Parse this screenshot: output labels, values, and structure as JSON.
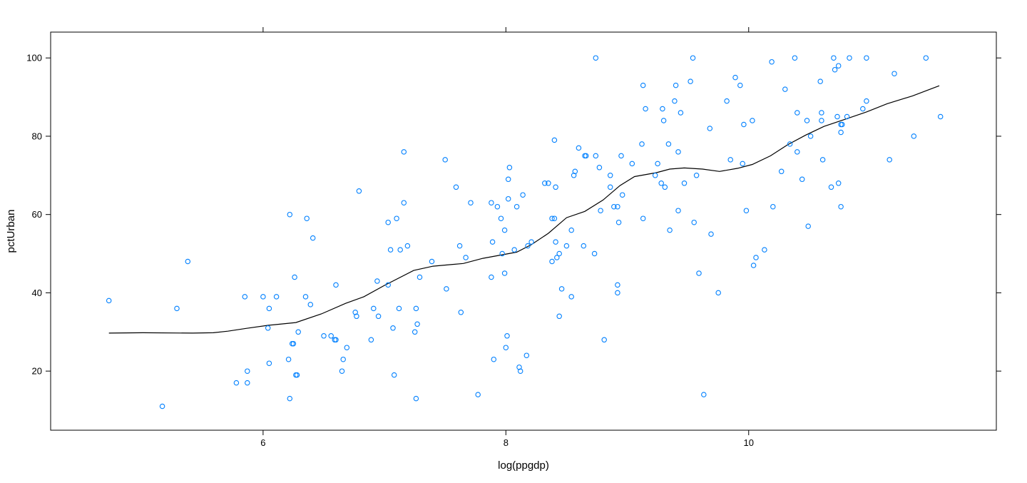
{
  "chart_data": {
    "type": "scatter",
    "xlabel": "log(ppgdp)",
    "ylabel": "pctUrban",
    "xlim": [
      4.25,
      12.04
    ],
    "ylim": [
      4.9,
      106.6
    ],
    "xticks": [
      6,
      8,
      10
    ],
    "yticks": [
      20,
      40,
      60,
      80,
      100
    ],
    "grid": false,
    "colors": {
      "points": "#0080ff",
      "smooth_line": "#000000"
    },
    "points": [
      [
        4.73,
        38
      ],
      [
        5.17,
        11
      ],
      [
        5.29,
        36
      ],
      [
        5.38,
        48
      ],
      [
        5.78,
        17
      ],
      [
        5.85,
        39
      ],
      [
        5.87,
        20
      ],
      [
        5.87,
        17
      ],
      [
        6.0,
        39
      ],
      [
        6.04,
        31
      ],
      [
        6.05,
        36
      ],
      [
        6.05,
        22
      ],
      [
        6.11,
        39
      ],
      [
        6.21,
        23
      ],
      [
        6.22,
        60
      ],
      [
        6.22,
        13
      ],
      [
        6.24,
        27
      ],
      [
        6.25,
        27
      ],
      [
        6.26,
        44
      ],
      [
        6.27,
        19
      ],
      [
        6.28,
        19
      ],
      [
        6.29,
        30
      ],
      [
        6.35,
        39
      ],
      [
        6.36,
        59
      ],
      [
        6.39,
        37
      ],
      [
        6.41,
        54
      ],
      [
        6.5,
        29
      ],
      [
        6.56,
        29
      ],
      [
        6.59,
        28
      ],
      [
        6.6,
        28
      ],
      [
        6.6,
        42
      ],
      [
        6.65,
        20
      ],
      [
        6.66,
        23
      ],
      [
        6.69,
        26
      ],
      [
        6.76,
        35
      ],
      [
        6.77,
        34
      ],
      [
        6.79,
        66
      ],
      [
        6.89,
        28
      ],
      [
        6.91,
        36
      ],
      [
        6.94,
        43
      ],
      [
        6.95,
        34
      ],
      [
        7.03,
        58
      ],
      [
        7.03,
        42
      ],
      [
        7.05,
        51
      ],
      [
        7.07,
        31
      ],
      [
        7.08,
        19
      ],
      [
        7.1,
        59
      ],
      [
        7.12,
        36
      ],
      [
        7.13,
        51
      ],
      [
        7.16,
        76
      ],
      [
        7.16,
        63
      ],
      [
        7.19,
        52
      ],
      [
        7.25,
        30
      ],
      [
        7.26,
        36
      ],
      [
        7.27,
        32
      ],
      [
        7.26,
        13
      ],
      [
        7.29,
        44
      ],
      [
        7.39,
        48
      ],
      [
        7.5,
        74
      ],
      [
        7.51,
        41
      ],
      [
        7.59,
        67
      ],
      [
        7.62,
        52
      ],
      [
        7.63,
        35
      ],
      [
        7.67,
        49
      ],
      [
        7.71,
        63
      ],
      [
        7.77,
        14
      ],
      [
        7.88,
        63
      ],
      [
        7.88,
        44
      ],
      [
        7.89,
        53
      ],
      [
        7.9,
        23
      ],
      [
        7.93,
        62
      ],
      [
        7.96,
        59
      ],
      [
        7.97,
        50
      ],
      [
        7.99,
        56
      ],
      [
        7.99,
        45
      ],
      [
        8.0,
        26
      ],
      [
        8.01,
        29
      ],
      [
        8.02,
        64
      ],
      [
        8.02,
        69
      ],
      [
        8.03,
        72
      ],
      [
        8.07,
        51
      ],
      [
        8.09,
        62
      ],
      [
        8.11,
        21
      ],
      [
        8.12,
        20
      ],
      [
        8.14,
        65
      ],
      [
        8.17,
        24
      ],
      [
        8.18,
        52
      ],
      [
        8.21,
        53
      ],
      [
        8.32,
        68
      ],
      [
        8.35,
        68
      ],
      [
        8.38,
        59
      ],
      [
        8.38,
        48
      ],
      [
        8.4,
        59
      ],
      [
        8.4,
        79
      ],
      [
        8.41,
        67
      ],
      [
        8.41,
        53
      ],
      [
        8.42,
        49
      ],
      [
        8.44,
        50
      ],
      [
        8.44,
        34
      ],
      [
        8.46,
        41
      ],
      [
        8.5,
        52
      ],
      [
        8.54,
        39
      ],
      [
        8.54,
        56
      ],
      [
        8.56,
        70
      ],
      [
        8.57,
        71
      ],
      [
        8.6,
        77
      ],
      [
        8.65,
        75
      ],
      [
        8.66,
        75
      ],
      [
        8.64,
        52
      ],
      [
        8.73,
        50
      ],
      [
        8.74,
        75
      ],
      [
        8.74,
        100
      ],
      [
        8.77,
        72
      ],
      [
        8.78,
        61
      ],
      [
        8.81,
        28
      ],
      [
        8.86,
        70
      ],
      [
        8.86,
        67
      ],
      [
        8.89,
        62
      ],
      [
        8.92,
        62
      ],
      [
        8.92,
        42
      ],
      [
        8.92,
        40
      ],
      [
        8.93,
        58
      ],
      [
        8.95,
        75
      ],
      [
        8.96,
        65
      ],
      [
        9.04,
        73
      ],
      [
        9.12,
        78
      ],
      [
        9.13,
        93
      ],
      [
        9.13,
        59
      ],
      [
        9.15,
        87
      ],
      [
        9.23,
        70
      ],
      [
        9.25,
        73
      ],
      [
        9.28,
        68
      ],
      [
        9.29,
        87
      ],
      [
        9.3,
        84
      ],
      [
        9.31,
        67
      ],
      [
        9.34,
        78
      ],
      [
        9.35,
        56
      ],
      [
        9.39,
        89
      ],
      [
        9.4,
        93
      ],
      [
        9.42,
        76
      ],
      [
        9.42,
        61
      ],
      [
        9.44,
        86
      ],
      [
        9.47,
        68
      ],
      [
        9.52,
        94
      ],
      [
        9.54,
        100
      ],
      [
        9.55,
        58
      ],
      [
        9.57,
        70
      ],
      [
        9.59,
        45
      ],
      [
        9.63,
        14
      ],
      [
        9.68,
        82
      ],
      [
        9.69,
        55
      ],
      [
        9.75,
        40
      ],
      [
        9.82,
        89
      ],
      [
        9.85,
        74
      ],
      [
        9.89,
        95
      ],
      [
        9.93,
        93
      ],
      [
        9.95,
        73
      ],
      [
        9.96,
        83
      ],
      [
        9.98,
        61
      ],
      [
        10.03,
        84
      ],
      [
        10.04,
        47
      ],
      [
        10.06,
        49
      ],
      [
        10.13,
        51
      ],
      [
        10.19,
        99
      ],
      [
        10.2,
        62
      ],
      [
        10.27,
        71
      ],
      [
        10.3,
        92
      ],
      [
        10.34,
        78
      ],
      [
        10.38,
        100
      ],
      [
        10.4,
        86
      ],
      [
        10.4,
        76
      ],
      [
        10.44,
        69
      ],
      [
        10.48,
        84
      ],
      [
        10.49,
        57
      ],
      [
        10.51,
        80
      ],
      [
        10.59,
        94
      ],
      [
        10.6,
        86
      ],
      [
        10.6,
        84
      ],
      [
        10.61,
        74
      ],
      [
        10.68,
        67
      ],
      [
        10.7,
        100
      ],
      [
        10.71,
        97
      ],
      [
        10.73,
        85
      ],
      [
        10.74,
        68
      ],
      [
        10.74,
        98
      ],
      [
        10.76,
        62
      ],
      [
        10.76,
        83
      ],
      [
        10.76,
        81
      ],
      [
        10.77,
        83
      ],
      [
        10.81,
        85
      ],
      [
        10.83,
        100
      ],
      [
        10.94,
        87
      ],
      [
        10.97,
        89
      ],
      [
        10.97,
        100
      ],
      [
        11.16,
        74
      ],
      [
        11.2,
        96
      ],
      [
        11.36,
        80
      ],
      [
        11.46,
        100
      ],
      [
        11.58,
        85
      ]
    ],
    "smooth_line": [
      [
        4.73,
        29.7
      ],
      [
        5.01,
        29.8
      ],
      [
        5.42,
        29.7
      ],
      [
        5.59,
        29.8
      ],
      [
        5.71,
        30.2
      ],
      [
        5.86,
        30.9
      ],
      [
        6.04,
        31.7
      ],
      [
        6.27,
        32.4
      ],
      [
        6.48,
        34.6
      ],
      [
        6.68,
        37.3
      ],
      [
        6.83,
        39.0
      ],
      [
        7.0,
        41.9
      ],
      [
        7.24,
        45.7
      ],
      [
        7.4,
        46.8
      ],
      [
        7.65,
        47.5
      ],
      [
        7.81,
        48.8
      ],
      [
        8.09,
        50.4
      ],
      [
        8.21,
        52.3
      ],
      [
        8.35,
        55.2
      ],
      [
        8.5,
        59.2
      ],
      [
        8.65,
        60.8
      ],
      [
        8.8,
        63.7
      ],
      [
        8.94,
        67.4
      ],
      [
        9.06,
        69.7
      ],
      [
        9.24,
        70.7
      ],
      [
        9.35,
        71.6
      ],
      [
        9.47,
        71.9
      ],
      [
        9.62,
        71.6
      ],
      [
        9.76,
        71.0
      ],
      [
        9.91,
        71.8
      ],
      [
        10.03,
        72.8
      ],
      [
        10.18,
        75.0
      ],
      [
        10.32,
        77.8
      ],
      [
        10.47,
        80.3
      ],
      [
        10.62,
        82.5
      ],
      [
        10.79,
        84.3
      ],
      [
        10.97,
        86.2
      ],
      [
        11.14,
        88.3
      ],
      [
        11.35,
        90.3
      ],
      [
        11.57,
        92.9
      ]
    ]
  }
}
